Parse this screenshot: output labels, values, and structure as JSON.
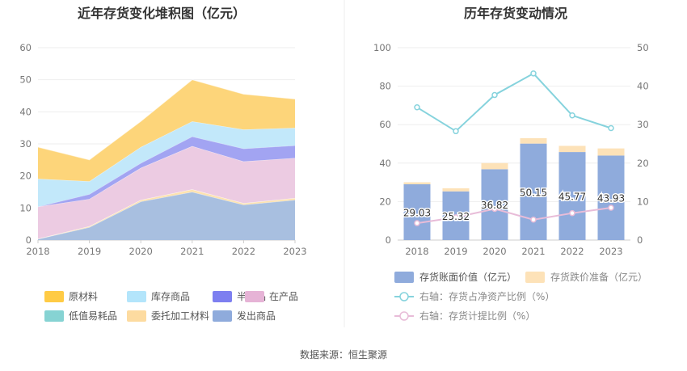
{
  "source_note": "数据来源：恒生聚源",
  "chart_data": [
    {
      "type": "area",
      "stacked": true,
      "title": "近年存货变化堆积图（亿元）",
      "categories": [
        "2018",
        "2019",
        "2020",
        "2021",
        "2022",
        "2023"
      ],
      "ylim": [
        0,
        60
      ],
      "yticks": [
        "0",
        "10",
        "20",
        "30",
        "40",
        "50",
        "60"
      ],
      "series": [
        {
          "name": "发出商品",
          "values": [
            0.3,
            4.0,
            12.0,
            15.0,
            11.0,
            12.5
          ],
          "color": "#a8bfe0"
        },
        {
          "name": "委托加工材料",
          "values": [
            0.1,
            0.3,
            0.5,
            0.8,
            0.5,
            0.6
          ],
          "color": "#fde2b0"
        },
        {
          "name": "低值易耗品",
          "values": [
            0.0,
            0.0,
            0.0,
            0.0,
            0.0,
            0.0
          ],
          "color": "#86d3d3"
        },
        {
          "name": "在产品",
          "values": [
            10.0,
            8.5,
            10.0,
            13.5,
            13.0,
            12.5
          ],
          "color": "#eccbe2"
        },
        {
          "name": "半成品",
          "values": [
            0.0,
            1.5,
            1.5,
            3.0,
            4.0,
            3.9
          ],
          "color": "#a2a4f2"
        },
        {
          "name": "库存商品",
          "values": [
            8.7,
            4.0,
            5.0,
            4.7,
            6.0,
            5.5
          ],
          "color": "#c2e8fa"
        },
        {
          "name": "原材料",
          "values": [
            9.9,
            6.7,
            8.0,
            13.0,
            11.0,
            9.0
          ],
          "color": "#fdd57a"
        }
      ],
      "legend": [
        {
          "name": "原材料",
          "color": "#ffcb45"
        },
        {
          "name": "库存商品",
          "color": "#b3e5fb"
        },
        {
          "name": "半成品",
          "color": "#7d7ff0"
        },
        {
          "name": "在产品",
          "color": "#e6b3d6"
        },
        {
          "name": "低值易耗品",
          "color": "#86d3d3"
        },
        {
          "name": "委托加工材料",
          "color": "#fddba0"
        },
        {
          "name": "发出商品",
          "color": "#8fabdc"
        }
      ]
    },
    {
      "type": "bar",
      "title": "历年存货变动情况",
      "categories": [
        "2018",
        "2019",
        "2020",
        "2021",
        "2022",
        "2023"
      ],
      "ylim": [
        0,
        100
      ],
      "yticks": [
        "0",
        "20",
        "40",
        "60",
        "80",
        "100"
      ],
      "y2lim": [
        0,
        50
      ],
      "y2ticks": [
        "0",
        "10",
        "20",
        "30",
        "40",
        "50"
      ],
      "series": [
        {
          "name": "存货账面价值（亿元）",
          "values": [
            29.03,
            25.32,
            36.82,
            50.15,
            45.77,
            43.93
          ],
          "labels": [
            "29.03",
            "25.32",
            "36.82",
            "50.15",
            "45.77",
            "43.93"
          ],
          "color": "#8fabdc"
        },
        {
          "name": "存货跌价准备（亿元）",
          "values": [
            1.0,
            1.6,
            3.2,
            2.8,
            3.2,
            3.7
          ],
          "color": "#fde2b8"
        }
      ],
      "lines": [
        {
          "name": "右轴：存货占净资产比例（%）",
          "axis": "right",
          "values": [
            34.5,
            28.3,
            37.7,
            43.3,
            32.4,
            29.1
          ],
          "color": "#86d3dd"
        },
        {
          "name": "右轴：存货计提比例（%）",
          "axis": "right",
          "values": [
            4.4,
            5.9,
            8.1,
            5.3,
            7.0,
            8.4
          ],
          "color": "#e8bcd8"
        }
      ]
    }
  ]
}
